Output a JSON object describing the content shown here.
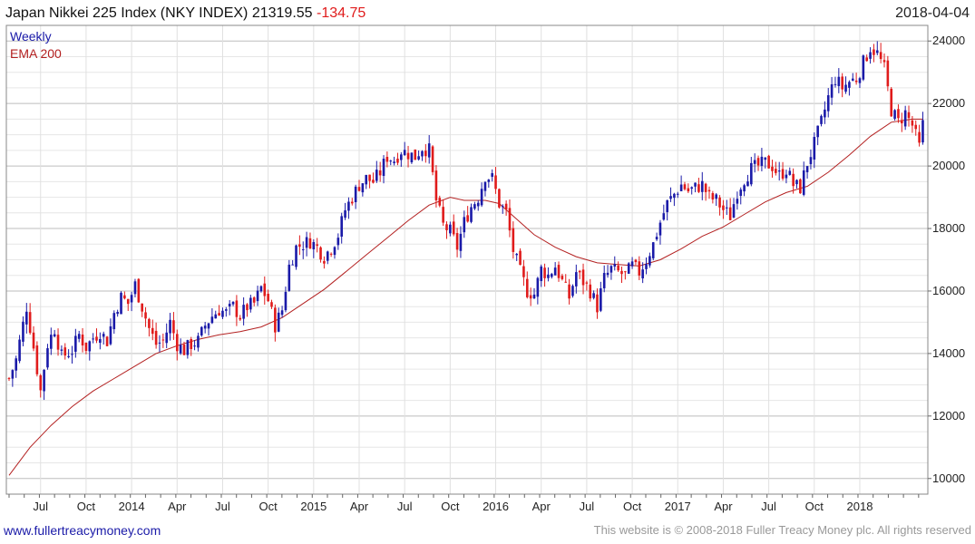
{
  "header": {
    "title": "Japan Nikkei 225 Index (NKY INDEX) 21319.55",
    "change": "-134.75",
    "change_color": "#e01b1b",
    "date": "2018-04-04"
  },
  "legend": {
    "weekly": "Weekly",
    "weekly_color": "#1a1aa8",
    "ema": "EMA 200",
    "ema_color": "#b32020"
  },
  "footer": {
    "left": "www.fullertreacymoney.com",
    "right": "This website is © 2008-2018 Fuller Treacy Money plc. All rights reserved"
  },
  "chart_data": {
    "type": "candlestick",
    "title": "Japan Nikkei 225 Index (NKY INDEX)",
    "ylim": [
      9500,
      24500
    ],
    "y_ticks": [
      10000,
      12000,
      14000,
      16000,
      18000,
      20000,
      22000,
      24000
    ],
    "x_labels": [
      "Jul",
      "Oct",
      "2014",
      "Apr",
      "Jul",
      "Oct",
      "2015",
      "Apr",
      "Jul",
      "Oct",
      "2016",
      "Apr",
      "Jul",
      "Oct",
      "2017",
      "Apr",
      "Jul",
      "Oct",
      "2018"
    ],
    "x_label_weeks": [
      9,
      22,
      35,
      48,
      61,
      74,
      87,
      100,
      113,
      126,
      139,
      152,
      165,
      178,
      191,
      204,
      217,
      230,
      243
    ],
    "week_count": 262,
    "up_color": "#1a1aa8",
    "down_color": "#e01b1b",
    "close_points": [
      [
        0,
        13200
      ],
      [
        2,
        13800
      ],
      [
        5,
        15500
      ],
      [
        7,
        14200
      ],
      [
        9,
        12800
      ],
      [
        11,
        14300
      ],
      [
        13,
        14800
      ],
      [
        15,
        13900
      ],
      [
        18,
        14100
      ],
      [
        20,
        14600
      ],
      [
        22,
        14200
      ],
      [
        24,
        14500
      ],
      [
        26,
        14700
      ],
      [
        28,
        14400
      ],
      [
        30,
        15300
      ],
      [
        32,
        15800
      ],
      [
        34,
        15600
      ],
      [
        36,
        16200
      ],
      [
        38,
        15500
      ],
      [
        40,
        14800
      ],
      [
        42,
        14300
      ],
      [
        44,
        14400
      ],
      [
        46,
        15000
      ],
      [
        48,
        14300
      ],
      [
        50,
        14100
      ],
      [
        52,
        14300
      ],
      [
        54,
        14400
      ],
      [
        56,
        14900
      ],
      [
        58,
        15200
      ],
      [
        60,
        15400
      ],
      [
        62,
        15300
      ],
      [
        64,
        15500
      ],
      [
        66,
        15200
      ],
      [
        68,
        15500
      ],
      [
        70,
        15600
      ],
      [
        72,
        16100
      ],
      [
        74,
        15700
      ],
      [
        76,
        14900
      ],
      [
        78,
        15400
      ],
      [
        80,
        16800
      ],
      [
        82,
        17400
      ],
      [
        84,
        17500
      ],
      [
        86,
        17600
      ],
      [
        88,
        17400
      ],
      [
        90,
        17100
      ],
      [
        92,
        17400
      ],
      [
        94,
        17800
      ],
      [
        96,
        18600
      ],
      [
        98,
        19000
      ],
      [
        100,
        19400
      ],
      [
        102,
        19600
      ],
      [
        104,
        19500
      ],
      [
        106,
        19800
      ],
      [
        108,
        20300
      ],
      [
        110,
        20200
      ],
      [
        112,
        20500
      ],
      [
        114,
        20400
      ],
      [
        116,
        20300
      ],
      [
        118,
        20600
      ],
      [
        120,
        20500
      ],
      [
        122,
        18900
      ],
      [
        124,
        18100
      ],
      [
        126,
        17900
      ],
      [
        128,
        17400
      ],
      [
        130,
        18200
      ],
      [
        132,
        18700
      ],
      [
        134,
        19000
      ],
      [
        136,
        19700
      ],
      [
        138,
        19600
      ],
      [
        140,
        18800
      ],
      [
        142,
        18500
      ],
      [
        144,
        17300
      ],
      [
        146,
        16600
      ],
      [
        148,
        16000
      ],
      [
        150,
        15900
      ],
      [
        152,
        16700
      ],
      [
        154,
        16500
      ],
      [
        156,
        16800
      ],
      [
        158,
        16300
      ],
      [
        160,
        15800
      ],
      [
        162,
        16600
      ],
      [
        164,
        16300
      ],
      [
        166,
        16000
      ],
      [
        168,
        15500
      ],
      [
        170,
        16400
      ],
      [
        172,
        16700
      ],
      [
        174,
        16600
      ],
      [
        176,
        16500
      ],
      [
        178,
        16800
      ],
      [
        180,
        16600
      ],
      [
        182,
        17000
      ],
      [
        184,
        17500
      ],
      [
        186,
        18200
      ],
      [
        188,
        18800
      ],
      [
        190,
        19100
      ],
      [
        192,
        19400
      ],
      [
        194,
        19200
      ],
      [
        196,
        19300
      ],
      [
        198,
        19400
      ],
      [
        200,
        19000
      ],
      [
        202,
        18900
      ],
      [
        204,
        18600
      ],
      [
        206,
        18400
      ],
      [
        208,
        19200
      ],
      [
        210,
        19600
      ],
      [
        212,
        19900
      ],
      [
        214,
        20000
      ],
      [
        216,
        20100
      ],
      [
        218,
        20000
      ],
      [
        220,
        19700
      ],
      [
        222,
        19900
      ],
      [
        224,
        19400
      ],
      [
        226,
        19300
      ],
      [
        228,
        20100
      ],
      [
        230,
        20700
      ],
      [
        232,
        21400
      ],
      [
        234,
        22200
      ],
      [
        236,
        22800
      ],
      [
        238,
        22500
      ],
      [
        240,
        22700
      ],
      [
        242,
        22800
      ],
      [
        244,
        23300
      ],
      [
        246,
        23800
      ],
      [
        248,
        23600
      ],
      [
        250,
        23100
      ],
      [
        252,
        21800
      ],
      [
        254,
        21400
      ],
      [
        256,
        21700
      ],
      [
        258,
        21300
      ],
      [
        260,
        20600
      ],
      [
        261,
        21320
      ]
    ],
    "ema_points": [
      [
        0,
        10100
      ],
      [
        6,
        11000
      ],
      [
        12,
        11700
      ],
      [
        18,
        12300
      ],
      [
        24,
        12800
      ],
      [
        30,
        13200
      ],
      [
        36,
        13600
      ],
      [
        42,
        14000
      ],
      [
        48,
        14250
      ],
      [
        54,
        14450
      ],
      [
        60,
        14600
      ],
      [
        66,
        14700
      ],
      [
        72,
        14850
      ],
      [
        78,
        15150
      ],
      [
        84,
        15600
      ],
      [
        90,
        16050
      ],
      [
        96,
        16600
      ],
      [
        102,
        17150
      ],
      [
        108,
        17700
      ],
      [
        114,
        18250
      ],
      [
        120,
        18750
      ],
      [
        126,
        19000
      ],
      [
        130,
        18900
      ],
      [
        136,
        18900
      ],
      [
        140,
        18800
      ],
      [
        144,
        18400
      ],
      [
        150,
        17800
      ],
      [
        156,
        17400
      ],
      [
        162,
        17100
      ],
      [
        168,
        16900
      ],
      [
        174,
        16850
      ],
      [
        180,
        16800
      ],
      [
        186,
        17000
      ],
      [
        192,
        17350
      ],
      [
        198,
        17750
      ],
      [
        204,
        18050
      ],
      [
        210,
        18450
      ],
      [
        216,
        18850
      ],
      [
        222,
        19150
      ],
      [
        228,
        19350
      ],
      [
        234,
        19800
      ],
      [
        240,
        20350
      ],
      [
        246,
        20950
      ],
      [
        252,
        21400
      ],
      [
        258,
        21500
      ],
      [
        261,
        21500
      ]
    ]
  }
}
